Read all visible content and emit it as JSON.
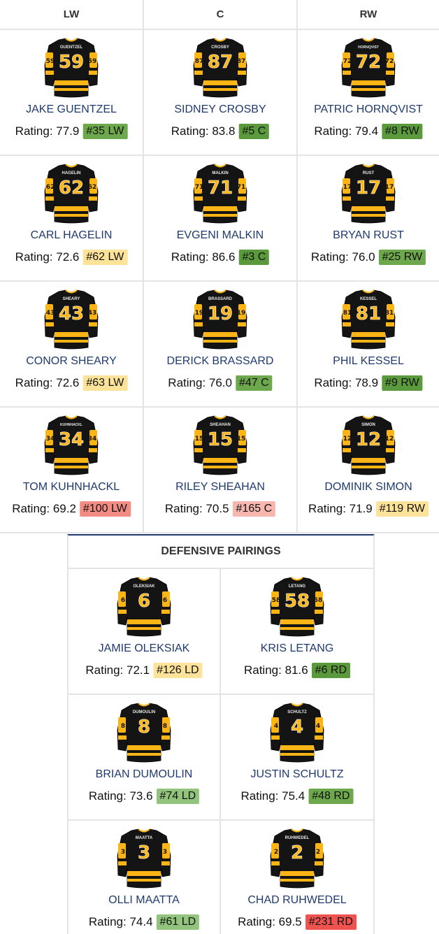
{
  "headers": [
    "LW",
    "C",
    "RW"
  ],
  "forward_lines": [
    [
      {
        "name": "JAKE GUENTZEL",
        "jersey_name": "GUENTZEL",
        "number": "59",
        "rating": "Rating: 77.9",
        "rank": "#35 LW",
        "rank_color": "#6ea84d"
      },
      {
        "name": "SIDNEY CROSBY",
        "jersey_name": "CROSBY",
        "number": "87",
        "rating": "Rating: 83.8",
        "rank": "#5 C",
        "rank_color": "#5a9a3c"
      },
      {
        "name": "PATRIC HORNQVIST",
        "jersey_name": "HORNQVIST",
        "number": "72",
        "rating": "Rating: 79.4",
        "rank": "#8 RW",
        "rank_color": "#5a9a3c"
      }
    ],
    [
      {
        "name": "CARL HAGELIN",
        "jersey_name": "HAGELIN",
        "number": "62",
        "rating": "Rating: 72.6",
        "rank": "#62 LW",
        "rank_color": "#fde39a"
      },
      {
        "name": "EVGENI MALKIN",
        "jersey_name": "MALKIN",
        "number": "71",
        "rating": "Rating: 86.6",
        "rank": "#3 C",
        "rank_color": "#5a9a3c"
      },
      {
        "name": "BRYAN RUST",
        "jersey_name": "RUST",
        "number": "17",
        "rating": "Rating: 76.0",
        "rank": "#25 RW",
        "rank_color": "#6ea84d"
      }
    ],
    [
      {
        "name": "CONOR SHEARY",
        "jersey_name": "SHEARY",
        "number": "43",
        "rating": "Rating: 72.6",
        "rank": "#63 LW",
        "rank_color": "#fde39a"
      },
      {
        "name": "DERICK BRASSARD",
        "jersey_name": "BRASSARD",
        "number": "19",
        "rating": "Rating: 76.0",
        "rank": "#47 C",
        "rank_color": "#6ea84d"
      },
      {
        "name": "PHIL KESSEL",
        "jersey_name": "KESSEL",
        "number": "81",
        "rating": "Rating: 78.9",
        "rank": "#9 RW",
        "rank_color": "#5a9a3c"
      }
    ],
    [
      {
        "name": "TOM KUHNHACKL",
        "jersey_name": "KUHNHACKL",
        "number": "34",
        "rating": "Rating: 69.2",
        "rank": "#100 LW",
        "rank_color": "#f28b82"
      },
      {
        "name": "RILEY SHEAHAN",
        "jersey_name": "SHEAHAN",
        "number": "15",
        "rating": "Rating: 70.5",
        "rank": "#165 C",
        "rank_color": "#f7b6ae"
      },
      {
        "name": "DOMINIK SIMON",
        "jersey_name": "SIMON",
        "number": "12",
        "rating": "Rating: 71.9",
        "rank": "#119 RW",
        "rank_color": "#fde39a"
      }
    ]
  ],
  "defense_title": "DEFENSIVE PAIRINGS",
  "defense_pairs": [
    [
      {
        "name": "JAMIE OLEKSIAK",
        "jersey_name": "OLEKSIAK",
        "number": "6",
        "rating": "Rating: 72.1",
        "rank": "#126 LD",
        "rank_color": "#fde39a"
      },
      {
        "name": "KRIS LETANG",
        "jersey_name": "LETANG",
        "number": "58",
        "rating": "Rating: 81.6",
        "rank": "#6 RD",
        "rank_color": "#5a9a3c"
      }
    ],
    [
      {
        "name": "BRIAN DUMOULIN",
        "jersey_name": "DUMOULIN",
        "number": "8",
        "rating": "Rating: 73.6",
        "rank": "#74 LD",
        "rank_color": "#93c47d"
      },
      {
        "name": "JUSTIN SCHULTZ",
        "jersey_name": "SCHULTZ",
        "number": "4",
        "rating": "Rating: 75.4",
        "rank": "#48 RD",
        "rank_color": "#6ea84d"
      }
    ],
    [
      {
        "name": "OLLI MAATTA",
        "jersey_name": "MAATTA",
        "number": "3",
        "rating": "Rating: 74.4",
        "rank": "#61 LD",
        "rank_color": "#93c47d"
      },
      {
        "name": "CHAD RUHWEDEL",
        "jersey_name": "RUHWEDEL",
        "number": "2",
        "rating": "Rating: 69.5",
        "rank": "#231 RD",
        "rank_color": "#ef5350"
      }
    ]
  ],
  "colors": {
    "jersey_black": "#141414",
    "jersey_gold": "#fcb514",
    "name_blue": "#1f3a6e"
  },
  "icons": {
    "jersey": "hockey-jersey-icon"
  }
}
